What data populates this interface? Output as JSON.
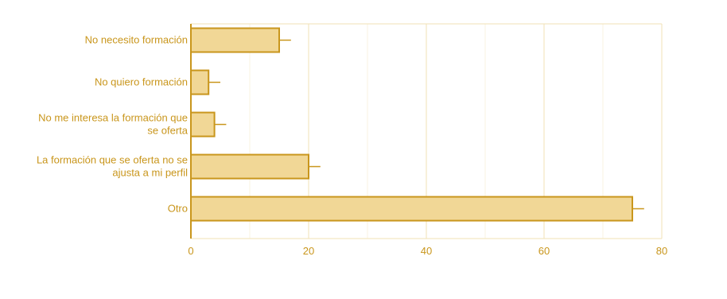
{
  "chart_data": {
    "type": "bar",
    "orientation": "horizontal",
    "categories": [
      [
        "No necesito formación"
      ],
      [
        "No quiero formación"
      ],
      [
        "No me interesa la formación que",
        "se oferta"
      ],
      [
        "La formación que se oferta no se",
        "ajusta a mi perfil"
      ],
      [
        "Otro"
      ]
    ],
    "values": [
      15,
      3,
      4,
      20,
      75
    ],
    "error": [
      2,
      2,
      2,
      2,
      2
    ],
    "xlim": [
      0,
      80
    ],
    "xticks": [
      0,
      20,
      40,
      60,
      80
    ],
    "title": "",
    "xlabel": "",
    "ylabel": "",
    "grid": true,
    "legend": "none",
    "colors": {
      "bar_fill": "#f1d796",
      "bar_stroke": "#c9961c",
      "text": "#c9961c",
      "grid_major": "#f2e2b4",
      "grid_minor": "#faf3e1",
      "frame": "#f2e2b4",
      "error_bar": "#c9961c"
    }
  }
}
